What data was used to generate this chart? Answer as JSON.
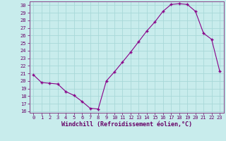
{
  "x": [
    0,
    1,
    2,
    3,
    4,
    5,
    6,
    7,
    8,
    9,
    10,
    11,
    12,
    13,
    14,
    15,
    16,
    17,
    18,
    19,
    20,
    21,
    22,
    23
  ],
  "y": [
    20.8,
    19.8,
    19.7,
    19.6,
    18.6,
    18.1,
    17.3,
    16.4,
    16.3,
    20.0,
    21.2,
    22.5,
    23.8,
    25.2,
    26.6,
    27.8,
    29.2,
    30.1,
    30.2,
    30.1,
    29.2,
    26.3,
    25.5,
    21.3
  ],
  "line_color": "#880088",
  "marker": "P",
  "background_color": "#c8ecec",
  "grid_color": "#a8d8d8",
  "xlabel": "Windchill (Refroidissement éolien,°C)",
  "ylim": [
    15.8,
    30.5
  ],
  "xlim": [
    -0.5,
    23.5
  ],
  "yticks": [
    16,
    17,
    18,
    19,
    20,
    21,
    22,
    23,
    24,
    25,
    26,
    27,
    28,
    29,
    30
  ],
  "xticks": [
    0,
    1,
    2,
    3,
    4,
    5,
    6,
    7,
    8,
    9,
    10,
    11,
    12,
    13,
    14,
    15,
    16,
    17,
    18,
    19,
    20,
    21,
    22,
    23
  ],
  "tick_fontsize": 5.0,
  "xlabel_fontsize": 6.0,
  "axis_color": "#660066",
  "spine_color": "#884488"
}
